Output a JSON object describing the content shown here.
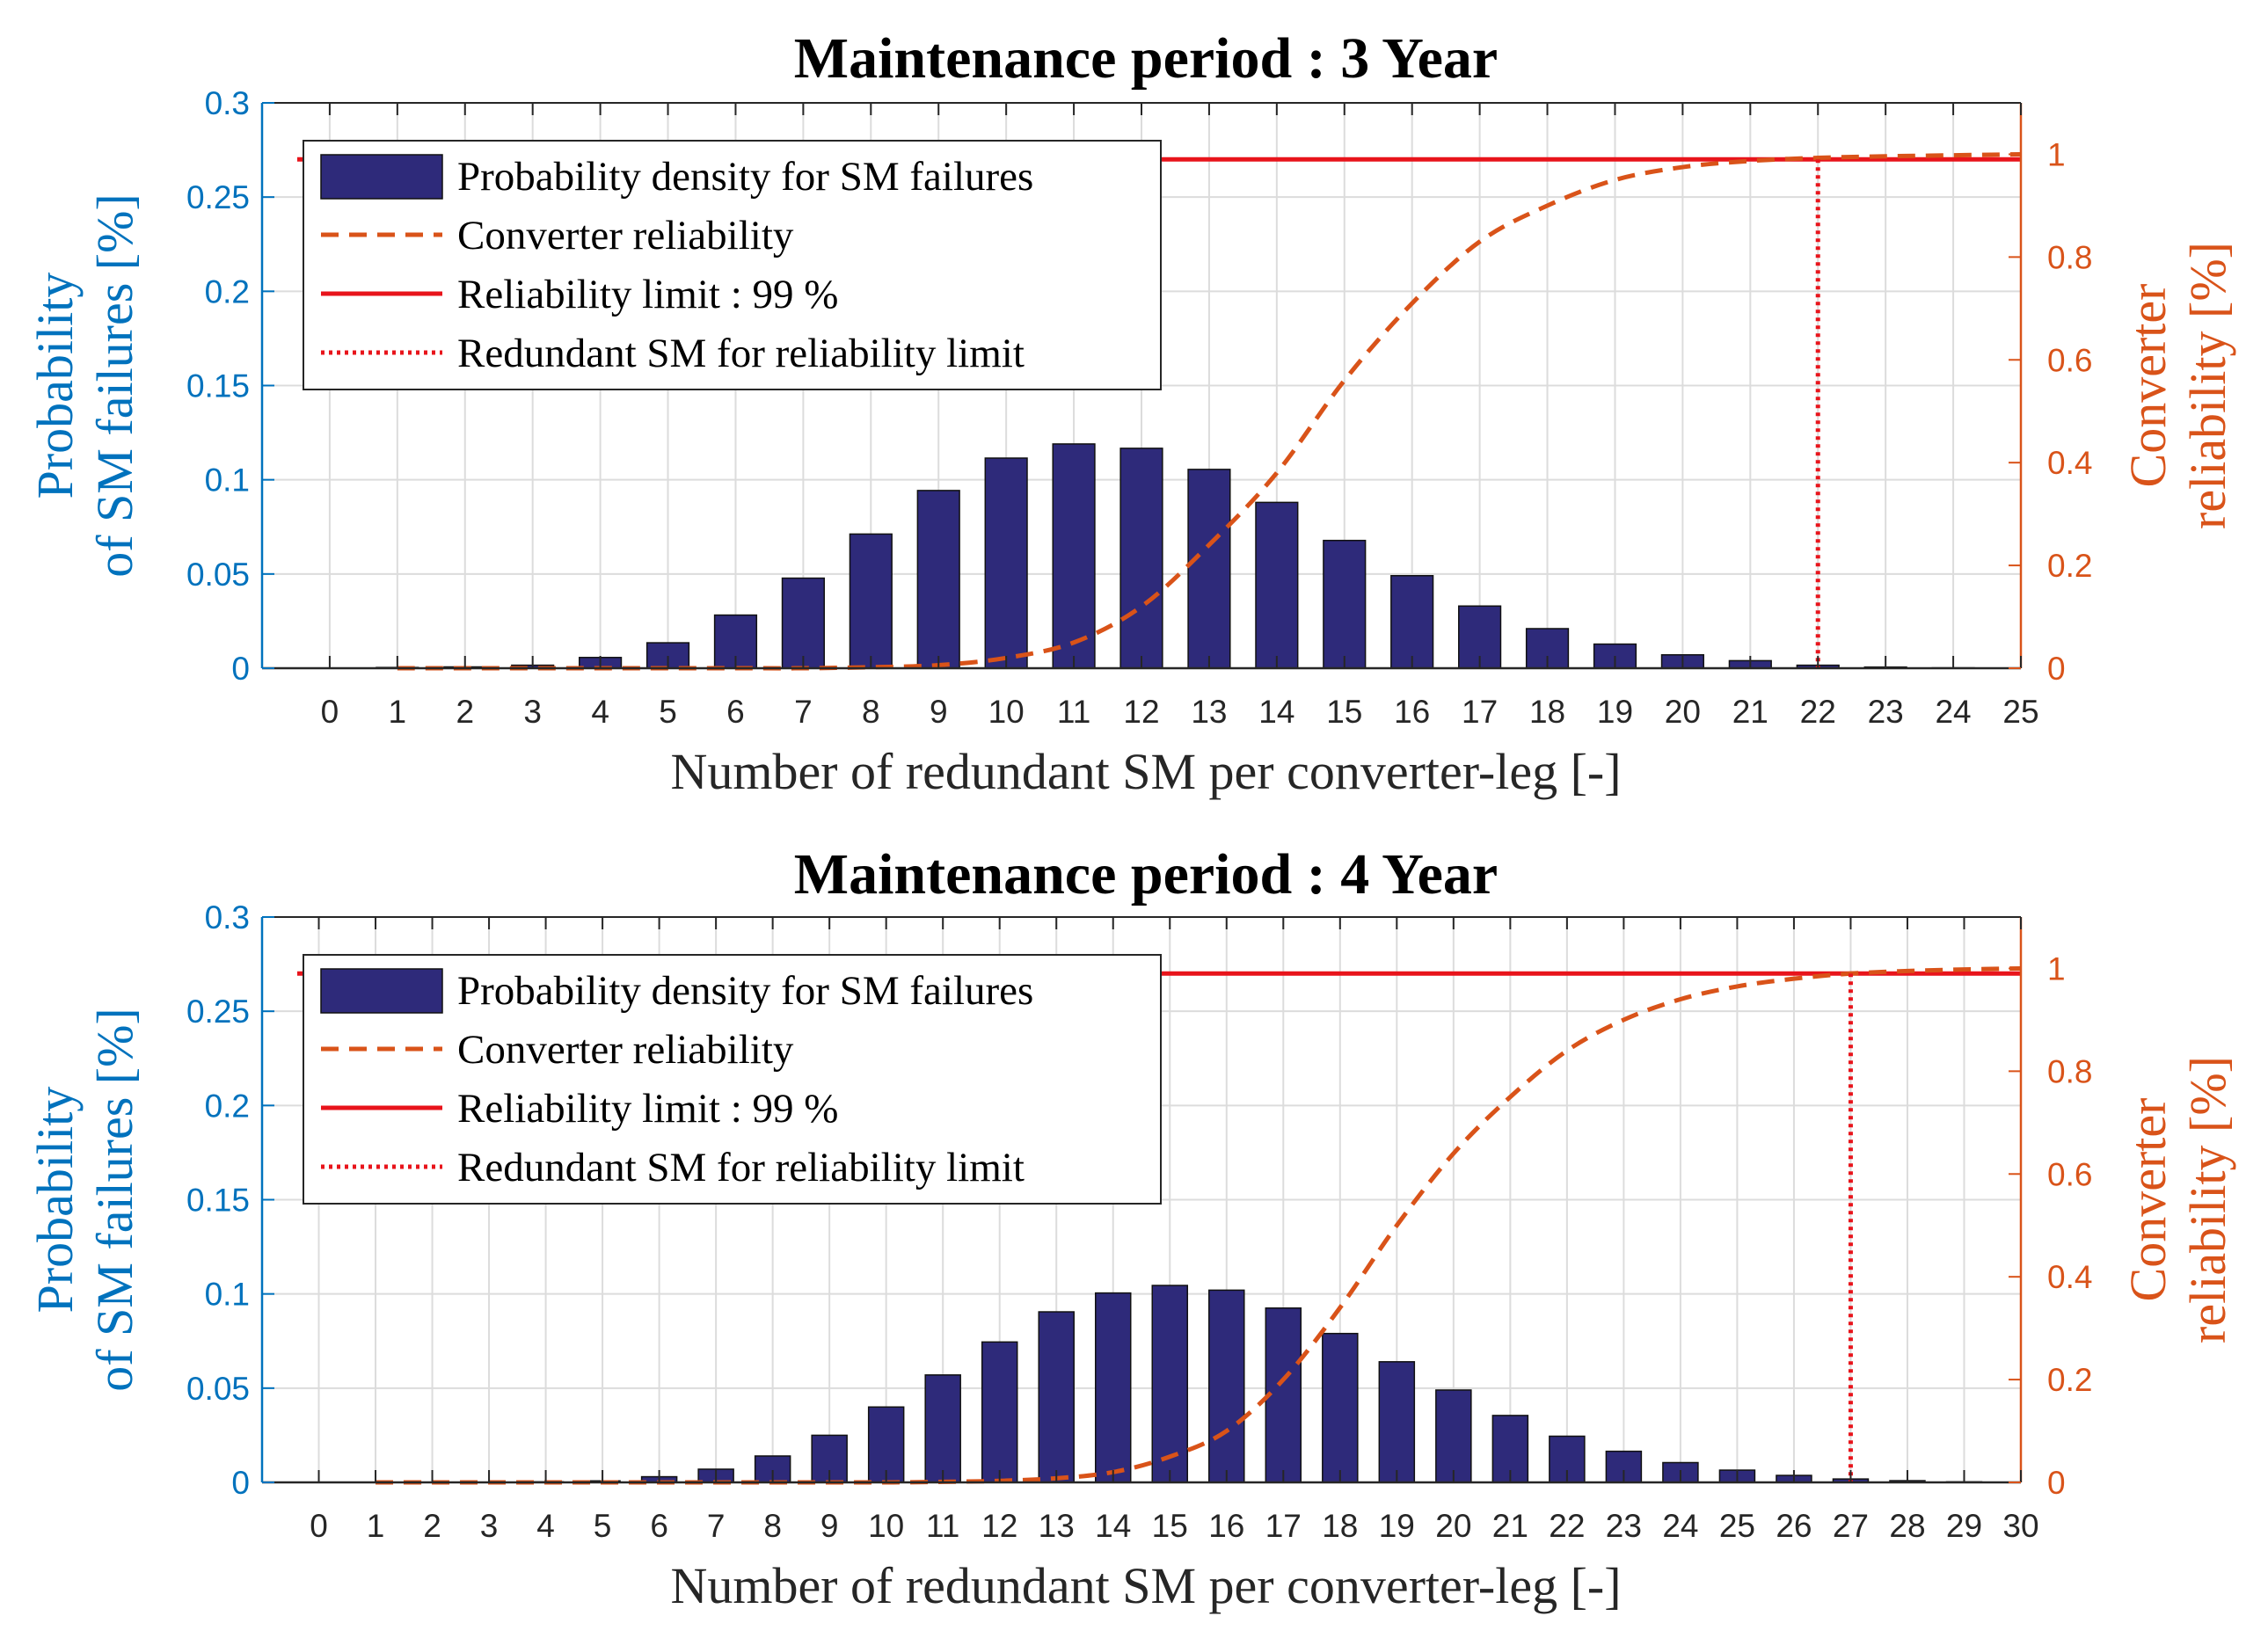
{
  "chart_data": [
    {
      "type": "bar",
      "title": "Maintenance period : 3 Year",
      "xlabel": "Number of redundant SM per converter-leg [-]",
      "ylabel_left": [
        "Probability",
        "of SM failures [%]"
      ],
      "ylabel_right": [
        "Converter",
        "reliability [%]"
      ],
      "xlim": [
        -1,
        25
      ],
      "x_ticks": [
        0,
        1,
        2,
        3,
        4,
        5,
        6,
        7,
        8,
        9,
        10,
        11,
        12,
        13,
        14,
        15,
        16,
        17,
        18,
        19,
        20,
        21,
        22,
        23,
        24,
        25
      ],
      "ylim_left": [
        0,
        0.3
      ],
      "y_ticks_left": [
        "0",
        "0.05",
        "0.1",
        "0.15",
        "0.2",
        "0.25",
        "0.3"
      ],
      "ylim_right": [
        0,
        1.1
      ],
      "y_ticks_right": [
        "0",
        "0.2",
        "0.4",
        "0.6",
        "0.8",
        "1"
      ],
      "grid": true,
      "legend_position": "top-left",
      "legend": [
        "Probability density for SM failures",
        "Converter reliability",
        "Reliability limit : 99 %",
        "Redundant SM for reliability limit"
      ],
      "colors": {
        "bar": "#2E2A7A",
        "reliability": "#D95319",
        "limit": "#E8141B",
        "left_axis": "#0072BD",
        "right_axis": "#D95319"
      },
      "series": [
        {
          "name": "Probability density for SM failures",
          "x": [
            0,
            1,
            2,
            3,
            4,
            5,
            6,
            7,
            8,
            9,
            10,
            11,
            12,
            13,
            14,
            15,
            16,
            17,
            18,
            19,
            20,
            21,
            22,
            23,
            24
          ],
          "values": [
            0.0001,
            0.0004,
            0.0007,
            0.0016,
            0.0057,
            0.0135,
            0.0282,
            0.0478,
            0.0712,
            0.0943,
            0.1115,
            0.119,
            0.1167,
            0.1055,
            0.088,
            0.0678,
            0.0491,
            0.033,
            0.021,
            0.0128,
            0.0071,
            0.004,
            0.0016,
            0.0006,
            0.0002
          ]
        },
        {
          "name": "Converter reliability",
          "x": [
            1,
            2,
            3,
            4,
            5,
            6,
            7,
            8,
            9,
            10,
            11,
            12,
            13,
            14,
            15,
            16,
            17,
            18,
            19,
            20,
            21,
            22,
            23,
            24,
            25
          ],
          "values": [
            0.0,
            0.0,
            0.0,
            0.0,
            0.0,
            0.0,
            0.0,
            0.002,
            0.006,
            0.02,
            0.05,
            0.12,
            0.24,
            0.38,
            0.56,
            0.71,
            0.83,
            0.9,
            0.95,
            0.975,
            0.987,
            0.993,
            0.996,
            0.998,
            1.0
          ]
        }
      ],
      "reliability_limit": 0.99,
      "redundant_sm_at_limit": 22
    },
    {
      "type": "bar",
      "title": "Maintenance period : 4 Year",
      "xlabel": "Number of redundant SM per converter-leg [-]",
      "ylabel_left": [
        "Probability",
        "of SM failures [%]"
      ],
      "ylabel_right": [
        "Converter",
        "reliability [%]"
      ],
      "xlim": [
        -1,
        30
      ],
      "x_ticks": [
        0,
        1,
        2,
        3,
        4,
        5,
        6,
        7,
        8,
        9,
        10,
        11,
        12,
        13,
        14,
        15,
        16,
        17,
        18,
        19,
        20,
        21,
        22,
        23,
        24,
        25,
        26,
        27,
        28,
        29,
        30
      ],
      "ylim_left": [
        0,
        0.3
      ],
      "y_ticks_left": [
        "0",
        "0.05",
        "0.1",
        "0.15",
        "0.2",
        "0.25",
        "0.3"
      ],
      "ylim_right": [
        0,
        1.1
      ],
      "y_ticks_right": [
        "0",
        "0.2",
        "0.4",
        "0.6",
        "0.8",
        "1"
      ],
      "grid": true,
      "legend_position": "top-left",
      "legend": [
        "Probability density for SM failures",
        "Converter reliability",
        "Reliability limit : 99 %",
        "Redundant SM for reliability limit"
      ],
      "colors": {
        "bar": "#2E2A7A",
        "reliability": "#D95319",
        "limit": "#E8141B",
        "left_axis": "#0072BD",
        "right_axis": "#D95319"
      },
      "series": [
        {
          "name": "Probability density for SM failures",
          "x": [
            0,
            1,
            2,
            3,
            4,
            5,
            6,
            7,
            8,
            9,
            10,
            11,
            12,
            13,
            14,
            15,
            16,
            17,
            18,
            19,
            20,
            21,
            22,
            23,
            24,
            25,
            26,
            27,
            28,
            29
          ],
          "values": [
            0.0,
            0.0,
            0.0,
            0.0001,
            0.0003,
            0.0008,
            0.003,
            0.007,
            0.014,
            0.025,
            0.04,
            0.057,
            0.0745,
            0.0905,
            0.1005,
            0.1045,
            0.102,
            0.0925,
            0.079,
            0.064,
            0.049,
            0.0355,
            0.0245,
            0.0165,
            0.0105,
            0.0065,
            0.0037,
            0.0018,
            0.0009,
            0.0003
          ]
        },
        {
          "name": "Converter reliability",
          "x": [
            1,
            2,
            3,
            4,
            5,
            6,
            7,
            8,
            9,
            10,
            11,
            12,
            13,
            14,
            15,
            16,
            17,
            18,
            19,
            20,
            21,
            22,
            23,
            24,
            25,
            26,
            27,
            28,
            29,
            30
          ],
          "values": [
            0.0,
            0.0,
            0.0,
            0.0,
            0.0,
            0.0,
            0.0,
            0.0,
            0.0,
            0.0,
            0.001,
            0.003,
            0.008,
            0.02,
            0.05,
            0.1,
            0.2,
            0.34,
            0.5,
            0.64,
            0.75,
            0.84,
            0.9,
            0.94,
            0.965,
            0.98,
            0.99,
            0.995,
            0.998,
            1.0
          ]
        }
      ],
      "reliability_limit": 0.99,
      "redundant_sm_at_limit": 27
    }
  ]
}
